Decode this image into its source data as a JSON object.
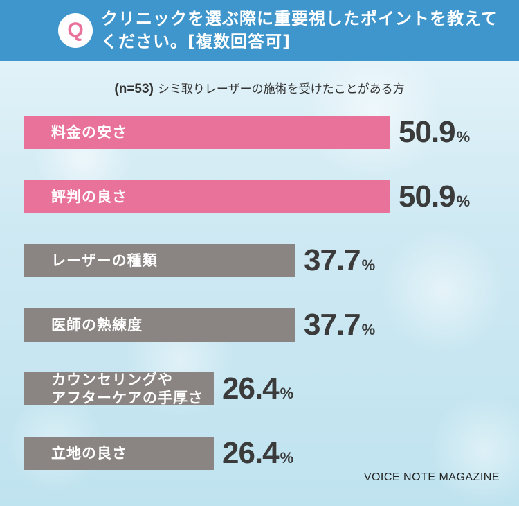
{
  "header": {
    "badge": "Q",
    "question": "クリニックを選ぶ際に重要視したポイントを教えてください。[複数回答可]"
  },
  "subtitle": {
    "n_text": "(n=53)",
    "text": "シミ取りレーザーの施術を受けたことがある方"
  },
  "chart_data": {
    "type": "bar",
    "orientation": "horizontal",
    "unit": "%",
    "categories": [
      "料金の安さ",
      "評判の良さ",
      "レーザーの種類",
      "医師の熟練度",
      "カウンセリングやアフターケアの手厚さ",
      "立地の良さ"
    ],
    "values": [
      50.9,
      50.9,
      37.7,
      37.7,
      26.4,
      26.4
    ],
    "value_labels": [
      "50.9",
      "50.9",
      "37.7",
      "37.7",
      "26.4",
      "26.4"
    ],
    "label_lines": [
      [
        "料金の安さ"
      ],
      [
        "評判の良さ"
      ],
      [
        "レーザーの種類"
      ],
      [
        "医師の熟練度"
      ],
      [
        "カウンセリングや",
        "アフターケアの手厚さ"
      ],
      [
        "立地の良さ"
      ]
    ],
    "colors": [
      "#e8729a",
      "#e8729a",
      "#8a8583",
      "#8a8583",
      "#8a8583",
      "#8a8583"
    ],
    "xlim": [
      0,
      50.9
    ],
    "grid": false,
    "legend": "none"
  },
  "watermark": "VOICE NOTE MAGAZINE"
}
